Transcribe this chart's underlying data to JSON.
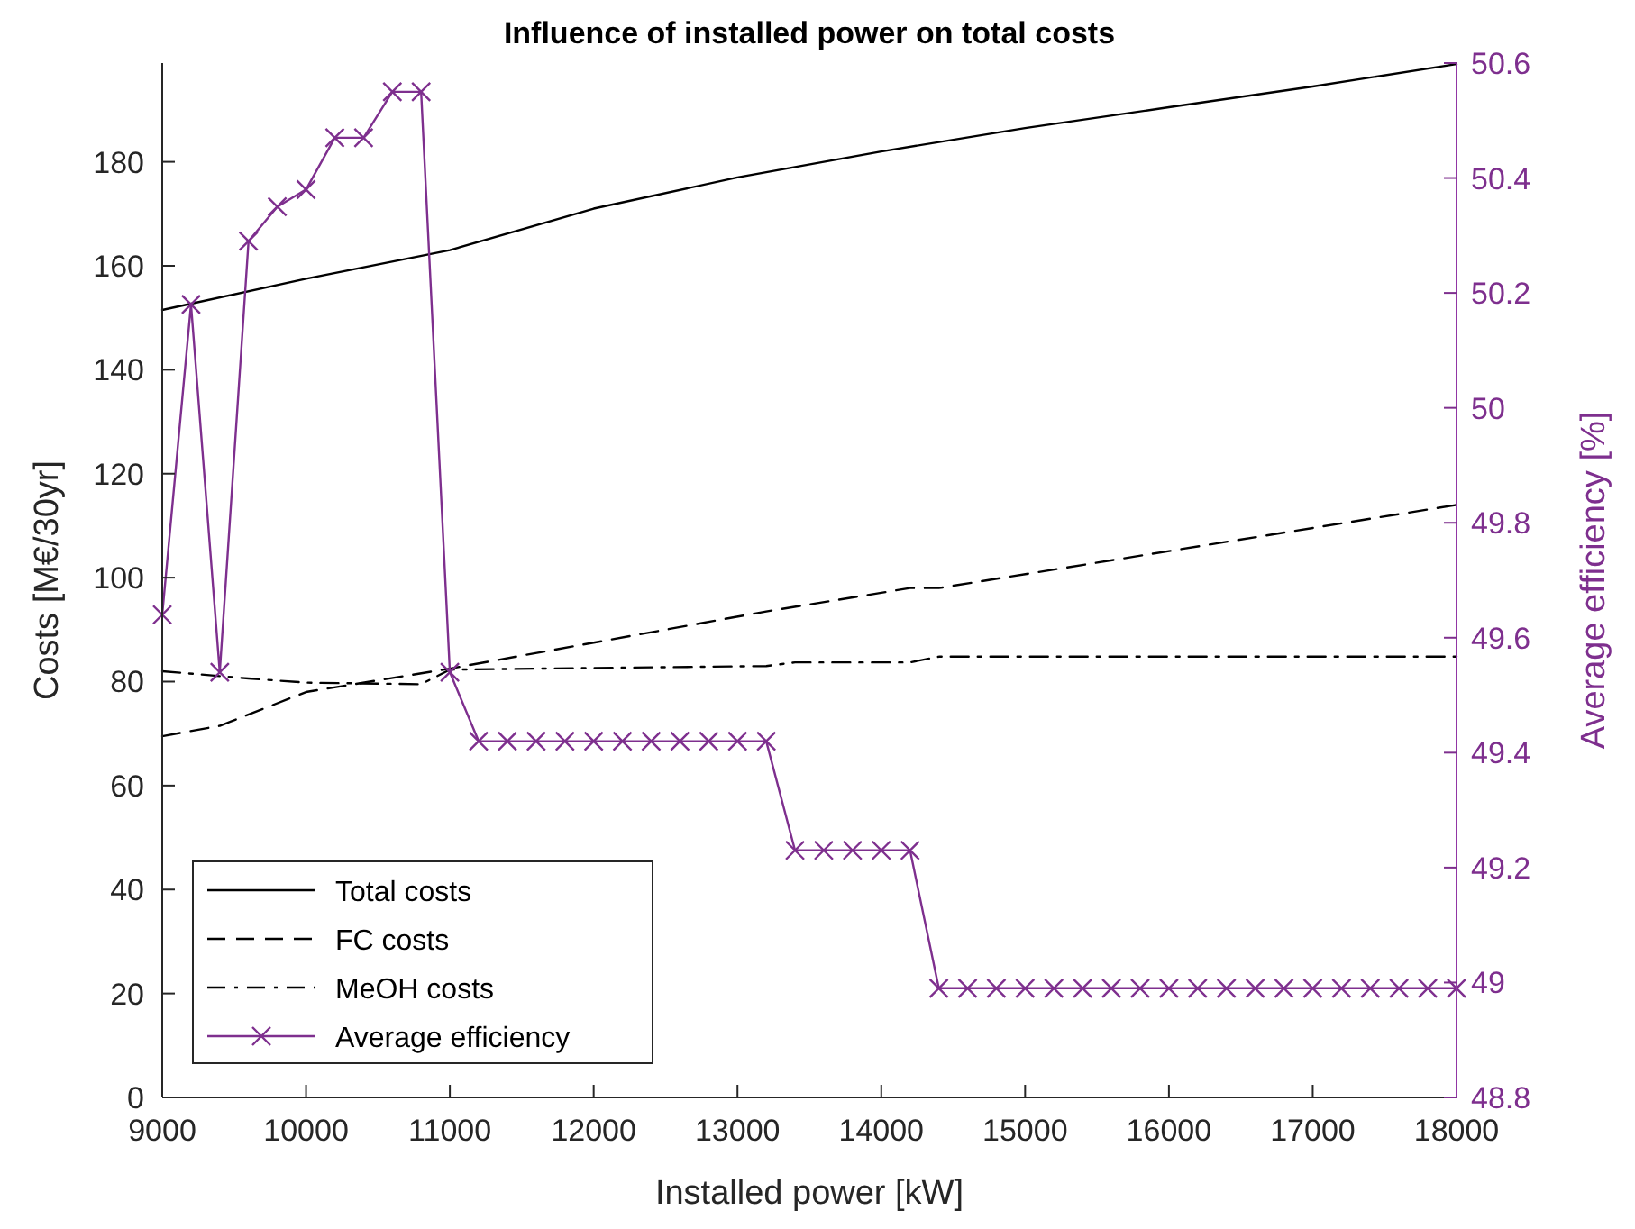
{
  "chart_data": {
    "type": "line",
    "title": "Influence of installed power on total costs",
    "xlabel": "Installed power [kW]",
    "ylabel": "Costs [M€/30yr]",
    "y2label": "Average efficiency [%]",
    "x": [
      9000,
      9200,
      9400,
      9600,
      9800,
      10000,
      10200,
      10400,
      10600,
      10800,
      11000,
      11200,
      11400,
      11600,
      11800,
      12000,
      12200,
      12400,
      12600,
      12800,
      13000,
      13200,
      13400,
      13600,
      13800,
      14000,
      14200,
      14400,
      14600,
      14800,
      15000,
      15200,
      15400,
      15600,
      15800,
      16000,
      16200,
      16400,
      16600,
      16800,
      17000,
      17200,
      17400,
      17600,
      17800,
      18000
    ],
    "series": [
      {
        "name": "Total costs",
        "color": "#000000",
        "line_style": "solid",
        "marker": "none",
        "x": [
          9000,
          10000,
          11000,
          12000,
          13000,
          14000,
          15000,
          16000,
          17000,
          18000
        ],
        "values": [
          151.5,
          157.5,
          163,
          171,
          177,
          182,
          186.5,
          190.5,
          194.5,
          198.8
        ]
      },
      {
        "name": "FC costs",
        "color": "#000000",
        "line_style": "dashed",
        "marker": "none",
        "x": [
          9000,
          9400,
          10000,
          11000,
          13200,
          14200,
          14400,
          18000
        ],
        "values": [
          69.5,
          71.5,
          78,
          82.5,
          93.5,
          98,
          98,
          114
        ]
      },
      {
        "name": "MeOH costs",
        "color": "#000000",
        "line_style": "dashdot",
        "marker": "none",
        "x": [
          9000,
          9600,
          10000,
          10800,
          11000,
          13200,
          13400,
          14200,
          14400,
          18000
        ],
        "values": [
          82,
          80.6,
          79.8,
          79.5,
          82.3,
          83,
          83.7,
          83.7,
          84.8,
          84.8
        ]
      },
      {
        "name": "Average efficiency",
        "color": "#7e2f8e",
        "line_style": "solid",
        "marker": "cross",
        "axis": "y2",
        "values": [
          49.64,
          50.18,
          49.54,
          50.29,
          50.35,
          50.38,
          50.47,
          50.47,
          50.55,
          50.55,
          49.54,
          49.42,
          49.42,
          49.42,
          49.42,
          49.42,
          49.42,
          49.42,
          49.42,
          49.42,
          49.42,
          49.42,
          49.23,
          49.23,
          49.23,
          49.23,
          49.23,
          48.99,
          48.99,
          48.99,
          48.99,
          48.99,
          48.99,
          48.99,
          48.99,
          48.99,
          48.99,
          48.99,
          48.99,
          48.99,
          48.99,
          48.99,
          48.99,
          48.99,
          48.99,
          48.99
        ]
      }
    ],
    "xlim": [
      9000,
      18000
    ],
    "xticks": [
      9000,
      10000,
      11000,
      12000,
      13000,
      14000,
      15000,
      16000,
      17000,
      18000
    ],
    "ylim": [
      0,
      199
    ],
    "yticks": [
      0,
      20,
      40,
      60,
      80,
      100,
      120,
      140,
      160,
      180
    ],
    "y2lim": [
      48.8,
      50.6
    ],
    "y2ticks": [
      48.8,
      49,
      49.2,
      49.4,
      49.6,
      49.8,
      50,
      50.2,
      50.4,
      50.6
    ],
    "grid": false,
    "legend": "bottom left"
  }
}
